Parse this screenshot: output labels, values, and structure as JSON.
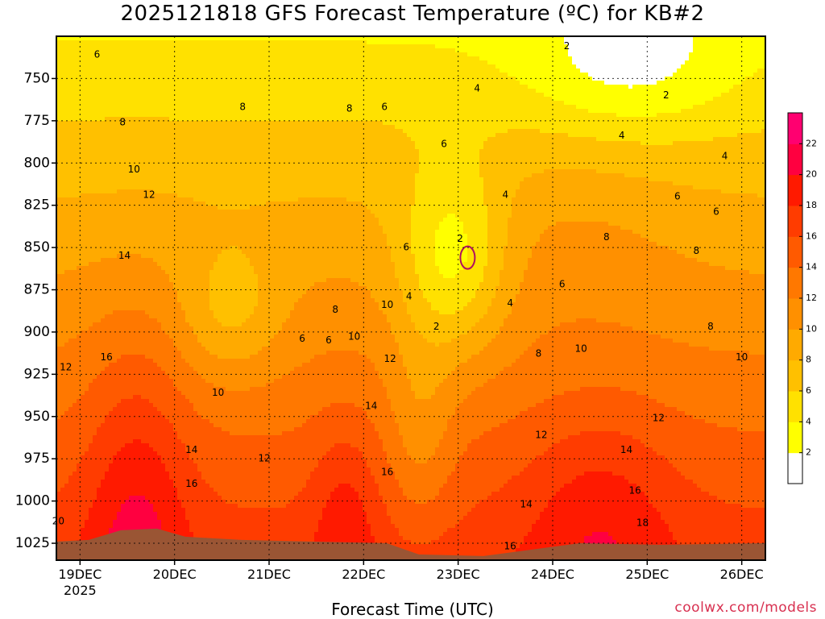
{
  "title": "2025121818 GFS Forecast Temperature (ºC) for KB#2",
  "credit": "coolwx.com/models",
  "colors": {
    "ground": "#9a5534",
    "contour": "#111111",
    "coldspot": "#b01060"
  },
  "chart_data": {
    "type": "heatmap",
    "title": "2025121818 GFS Forecast Temperature (ºC) for KB#2",
    "xlabel": "Forecast Time (UTC)",
    "ylabel": "",
    "x_ticks": [
      "19DEC",
      "20DEC",
      "21DEC",
      "22DEC",
      "23DEC",
      "24DEC",
      "25DEC",
      "26DEC"
    ],
    "x_tick_sub": "2025",
    "x_range_days": [
      -0.25,
      7.25
    ],
    "y_ticks": [
      750,
      775,
      800,
      825,
      850,
      875,
      900,
      925,
      950,
      975,
      1000,
      1025
    ],
    "y_range": [
      1035,
      725
    ],
    "colorbar": {
      "levels": [
        0,
        2,
        4,
        6,
        8,
        10,
        12,
        14,
        16,
        18,
        20,
        22,
        24
      ],
      "tick_labels": [
        "2",
        "4",
        "6",
        "8",
        "10",
        "12",
        "14",
        "16",
        "18",
        "20",
        "22"
      ],
      "colors": [
        "#ffffff",
        "#ffff00",
        "#ffe100",
        "#ffc000",
        "#ffaa00",
        "#ff9000",
        "#ff7800",
        "#ff5a00",
        "#ff3c00",
        "#ff1a00",
        "#ff0040",
        "#ff0070"
      ]
    },
    "contour_labels": [
      {
        "text": "2",
        "day": 5.15,
        "p": 731
      },
      {
        "text": "2",
        "day": 6.2,
        "p": 760
      },
      {
        "text": "4",
        "day": 4.2,
        "p": 756
      },
      {
        "text": "4",
        "day": 5.73,
        "p": 784
      },
      {
        "text": "4",
        "day": 6.82,
        "p": 796
      },
      {
        "text": "6",
        "day": 0.18,
        "p": 736
      },
      {
        "text": "6",
        "day": 3.22,
        "p": 767
      },
      {
        "text": "6",
        "day": 3.85,
        "p": 789
      },
      {
        "text": "6",
        "day": 6.32,
        "p": 820
      },
      {
        "text": "6",
        "day": 6.73,
        "p": 829
      },
      {
        "text": "6",
        "day": 2.35,
        "p": 904
      },
      {
        "text": "6",
        "day": 2.63,
        "p": 905
      },
      {
        "text": "6",
        "day": 3.45,
        "p": 850
      },
      {
        "text": "6",
        "day": 5.1,
        "p": 872
      },
      {
        "text": "4",
        "day": 3.48,
        "p": 879
      },
      {
        "text": "4",
        "day": 4.5,
        "p": 819
      },
      {
        "text": "4",
        "day": 4.55,
        "p": 883
      },
      {
        "text": "2",
        "day": 4.02,
        "p": 845
      },
      {
        "text": "2",
        "day": 3.77,
        "p": 897
      },
      {
        "text": "8",
        "day": 0.45,
        "p": 776
      },
      {
        "text": "8",
        "day": 1.72,
        "p": 767
      },
      {
        "text": "8",
        "day": 2.85,
        "p": 768
      },
      {
        "text": "8",
        "day": 2.7,
        "p": 887
      },
      {
        "text": "8",
        "day": 4.85,
        "p": 913
      },
      {
        "text": "8",
        "day": 5.57,
        "p": 844
      },
      {
        "text": "8",
        "day": 6.52,
        "p": 852
      },
      {
        "text": "8",
        "day": 6.67,
        "p": 897
      },
      {
        "text": "10",
        "day": 0.57,
        "p": 804
      },
      {
        "text": "10",
        "day": 2.9,
        "p": 903
      },
      {
        "text": "10",
        "day": 3.25,
        "p": 884
      },
      {
        "text": "10",
        "day": 5.3,
        "p": 910
      },
      {
        "text": "10",
        "day": 1.46,
        "p": 936
      },
      {
        "text": "10",
        "day": 7.0,
        "p": 915
      },
      {
        "text": "12",
        "day": 0.73,
        "p": 819
      },
      {
        "text": "12",
        "day": -0.15,
        "p": 921
      },
      {
        "text": "12",
        "day": 3.28,
        "p": 916
      },
      {
        "text": "12",
        "day": 1.95,
        "p": 975
      },
      {
        "text": "12",
        "day": 4.88,
        "p": 961
      },
      {
        "text": "12",
        "day": 6.12,
        "p": 951
      },
      {
        "text": "14",
        "day": 0.47,
        "p": 855
      },
      {
        "text": "14",
        "day": 1.18,
        "p": 970
      },
      {
        "text": "14",
        "day": 3.08,
        "p": 944
      },
      {
        "text": "14",
        "day": 4.72,
        "p": 1002
      },
      {
        "text": "14",
        "day": 5.78,
        "p": 970
      },
      {
        "text": "16",
        "day": 0.28,
        "p": 915
      },
      {
        "text": "16",
        "day": 1.18,
        "p": 990
      },
      {
        "text": "16",
        "day": 3.25,
        "p": 983
      },
      {
        "text": "16",
        "day": 4.55,
        "p": 1027
      },
      {
        "text": "16",
        "day": 5.87,
        "p": 994
      },
      {
        "text": "18",
        "day": 5.95,
        "p": 1013
      },
      {
        "text": "20",
        "day": -0.23,
        "p": 1012
      }
    ]
  }
}
